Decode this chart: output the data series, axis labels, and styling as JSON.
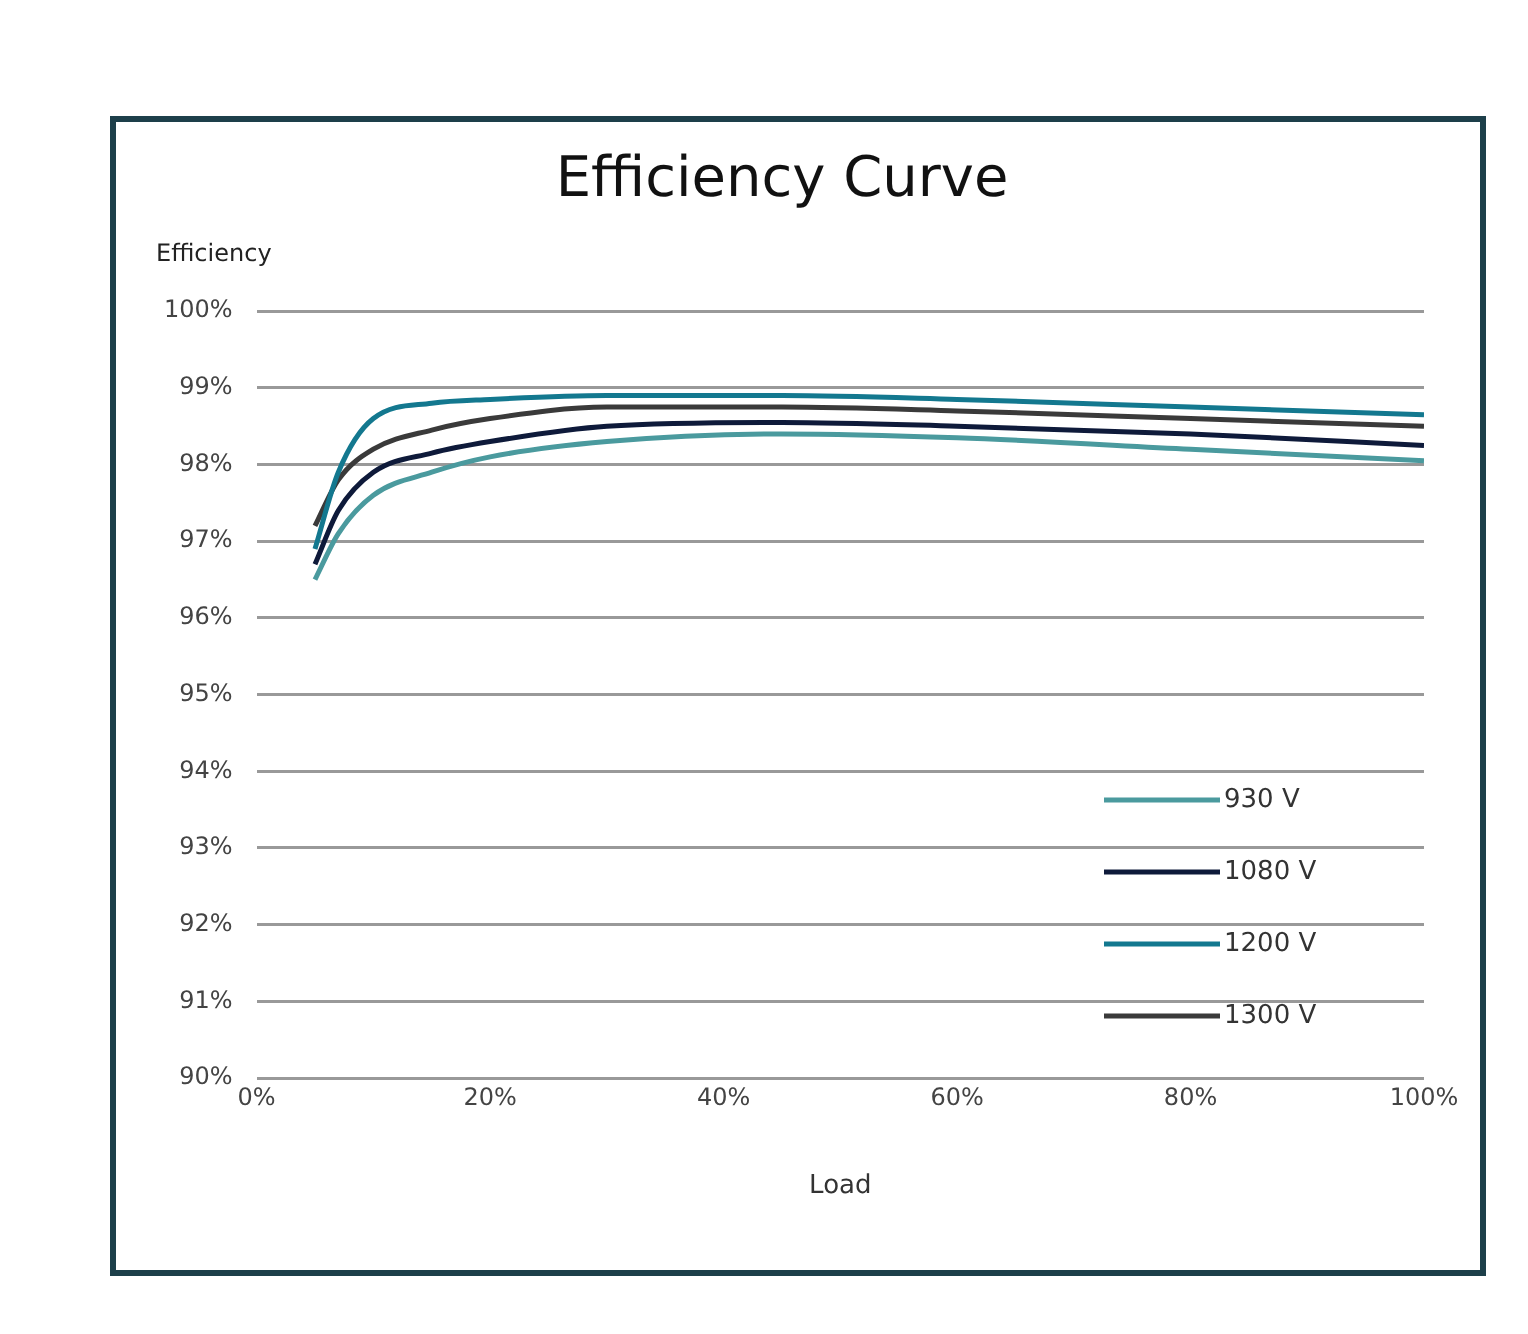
{
  "chart_data": {
    "type": "line",
    "title": "Efficiency Curve",
    "xlabel": "Load",
    "ylabel": "Efficiency",
    "x": [
      5,
      7,
      10,
      15,
      20,
      30,
      45,
      60,
      80,
      100
    ],
    "series": [
      {
        "name": "930 V",
        "color": "#4a9a9e",
        "values": [
          96.5,
          97.1,
          97.6,
          97.9,
          98.1,
          98.3,
          98.4,
          98.35,
          98.2,
          98.05
        ]
      },
      {
        "name": "1080 V",
        "color": "#0e1a3a",
        "values": [
          96.7,
          97.4,
          97.9,
          98.15,
          98.3,
          98.5,
          98.55,
          98.5,
          98.4,
          98.25
        ]
      },
      {
        "name": "1200 V",
        "color": "#13788f",
        "values": [
          96.9,
          97.9,
          98.6,
          98.8,
          98.85,
          98.9,
          98.9,
          98.85,
          98.75,
          98.65
        ]
      },
      {
        "name": "1300 V",
        "color": "#3a3a3a",
        "values": [
          97.2,
          97.8,
          98.2,
          98.45,
          98.6,
          98.75,
          98.75,
          98.7,
          98.6,
          98.5
        ]
      }
    ],
    "xlim": [
      0,
      100
    ],
    "xticks": [
      {
        "value": 0,
        "label": "0%"
      },
      {
        "value": 20,
        "label": "20%"
      },
      {
        "value": 40,
        "label": "40%"
      },
      {
        "value": 60,
        "label": "60%"
      },
      {
        "value": 80,
        "label": "80%"
      },
      {
        "value": 100,
        "label": "100%"
      }
    ],
    "ylim": [
      90,
      100
    ],
    "yticks": [
      {
        "value": 90,
        "label": "90%"
      },
      {
        "value": 91,
        "label": "91%"
      },
      {
        "value": 92,
        "label": "92%"
      },
      {
        "value": 93,
        "label": "93%"
      },
      {
        "value": 94,
        "label": "94%"
      },
      {
        "value": 95,
        "label": "95%"
      },
      {
        "value": 96,
        "label": "96%"
      },
      {
        "value": 97,
        "label": "97%"
      },
      {
        "value": 98,
        "label": "98%"
      },
      {
        "value": 99,
        "label": "99%"
      },
      {
        "value": 100,
        "label": "100%"
      }
    ],
    "grid": "y",
    "legend": "bottom right",
    "marker": "none",
    "line_style": "solid"
  }
}
